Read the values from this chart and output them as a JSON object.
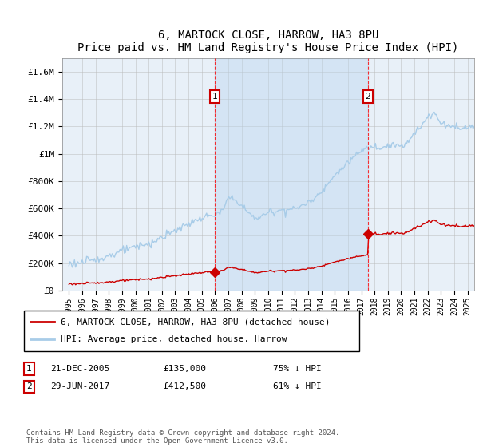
{
  "title": "6, MARTOCK CLOSE, HARROW, HA3 8PU",
  "subtitle": "Price paid vs. HM Land Registry's House Price Index (HPI)",
  "legend_line1": "6, MARTOCK CLOSE, HARROW, HA3 8PU (detached house)",
  "legend_line2": "HPI: Average price, detached house, Harrow",
  "transaction1_date": "21-DEC-2005",
  "transaction1_price": 135000,
  "transaction1_label": "75% ↓ HPI",
  "transaction1_year": 2005.97,
  "transaction2_date": "29-JUN-2017",
  "transaction2_price": 412500,
  "transaction2_label": "61% ↓ HPI",
  "transaction2_year": 2017.49,
  "footer": "Contains HM Land Registry data © Crown copyright and database right 2024.\nThis data is licensed under the Open Government Licence v3.0.",
  "hpi_color": "#a8cce8",
  "hpi_fill_color": "#d0e8f8",
  "price_color": "#cc0000",
  "background_color": "#e8f0f8",
  "shaded_color": "#cce0f0",
  "ylim": [
    0,
    1700000
  ],
  "xlim_start": 1994.5,
  "xlim_end": 2025.5
}
